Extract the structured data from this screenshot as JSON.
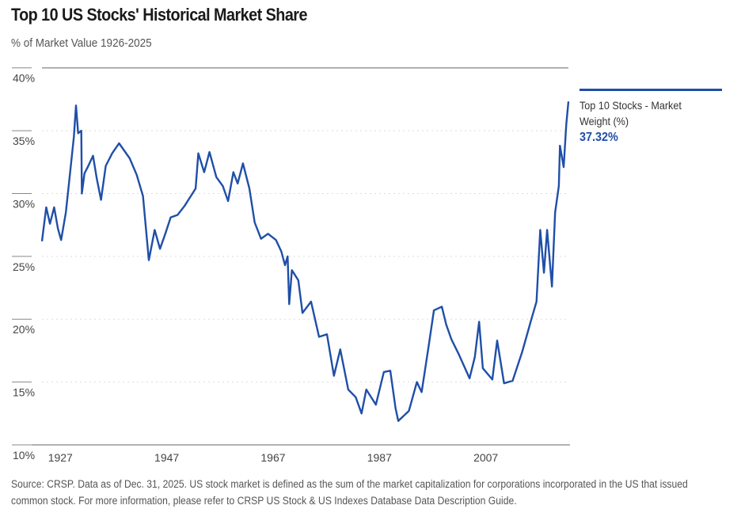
{
  "chart_data": {
    "type": "line",
    "title": "Top 10 US Stocks' Historical Market Share",
    "subtitle": "% of Market Value 1926-2025",
    "xlim": [
      1926,
      2025
    ],
    "ylim": [
      10,
      40
    ],
    "x_ticks": [
      "1927",
      "1947",
      "1967",
      "1987",
      "2007"
    ],
    "y_ticks": [
      "10%",
      "15%",
      "20%",
      "25%",
      "30%",
      "35%",
      "40%"
    ],
    "grid": "horizontal dotted",
    "legend": "right",
    "line_color": "#1f4fa8",
    "series": [
      {
        "name": "Top 10 Stocks - Market Weight (%)",
        "last_value_label": "37.32%",
        "x": [
          1926,
          1926.8,
          1927.5,
          1928.3,
          1929,
          1929.6,
          1930.5,
          1931.3,
          1932,
          1932.4,
          1932.8,
          1933.4,
          1933.5,
          1934,
          1934.6,
          1935.6,
          1936.3,
          1937.1,
          1938,
          1939.2,
          1940.5,
          1941.5,
          1942.5,
          1943.8,
          1945,
          1946.1,
          1947.2,
          1948.2,
          1949.2,
          1950.2,
          1951.5,
          1952.8,
          1954,
          1954.9,
          1955.4,
          1956.5,
          1957.5,
          1958.8,
          1960,
          1961,
          1962,
          1962.8,
          1963.8,
          1965,
          1966,
          1967.2,
          1968.5,
          1970,
          1971,
          1971.7,
          1972.2,
          1972.5,
          1973,
          1974.2,
          1975,
          1976.6,
          1978.1,
          1979.6,
          1980.9,
          1982.1,
          1983.6,
          1985,
          1986.1,
          1987,
          1988.8,
          1990.3,
          1991.5,
          1992.5,
          1993,
          1995,
          1996.5,
          1997.4,
          1998.7,
          1999.7,
          2001.2,
          2002,
          2003,
          2004.4,
          2006.4,
          2007.4,
          2008.2,
          2008.9,
          2010.7,
          2011.6,
          2012.9,
          2014.5,
          2016.3,
          2018.1,
          2019,
          2019.7,
          2020.4,
          2021,
          2021.9,
          2022.5,
          2023.2,
          2023.4,
          2024.1,
          2024.6,
          2025
        ],
        "y": [
          26.2,
          28.9,
          27.6,
          28.9,
          27.2,
          26.3,
          28.5,
          31.7,
          34.5,
          37.0,
          34.8,
          35.0,
          30.0,
          31.6,
          32.1,
          33.0,
          31.2,
          29.5,
          32.2,
          33.2,
          34.0,
          33.4,
          32.8,
          31.5,
          29.8,
          24.7,
          27.1,
          25.6,
          26.8,
          28.1,
          28.3,
          29.0,
          29.8,
          30.4,
          33.2,
          31.7,
          33.3,
          31.3,
          30.6,
          29.4,
          31.7,
          30.8,
          32.4,
          30.4,
          27.7,
          26.4,
          26.8,
          26.3,
          25.4,
          24.3,
          25.0,
          21.2,
          23.9,
          23.1,
          20.5,
          21.4,
          18.6,
          18.8,
          15.5,
          17.6,
          14.4,
          13.8,
          12.5,
          14.4,
          13.2,
          15.8,
          15.9,
          12.9,
          11.9,
          12.7,
          15.0,
          14.2,
          17.8,
          20.7,
          21.0,
          19.6,
          18.4,
          17.2,
          15.3,
          17.0,
          19.8,
          16.1,
          15.2,
          18.3,
          14.9,
          15.1,
          17.4,
          20.1,
          21.4,
          27.1,
          23.7,
          27.1,
          22.6,
          28.5,
          30.6,
          33.8,
          32.1,
          35.5,
          37.32
        ]
      }
    ]
  },
  "footer": {
    "line1": "Source: CRSP. Data as of Dec. 31, 2025. US stock market is defined as the sum of the market capitalization for corporations incorporated in the US that issued",
    "line2": "common stock. For more information, please refer to CRSP US Stock & US Indexes Database Data Description Guide."
  }
}
